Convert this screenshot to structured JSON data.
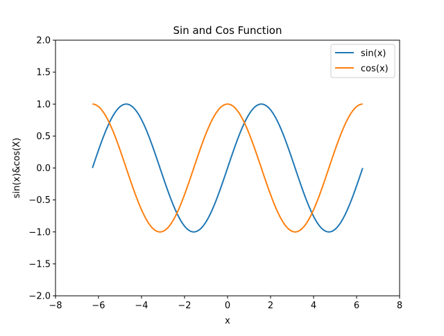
{
  "chart_data": {
    "type": "line",
    "title": "Sin and Cos Function",
    "xlabel": "x",
    "ylabel": "sin(x)&cos(X)",
    "xlim": [
      -8,
      8
    ],
    "ylim": [
      -2,
      2
    ],
    "xticks": [
      -8,
      -6,
      -4,
      -2,
      0,
      2,
      4,
      6,
      8
    ],
    "yticks": [
      -2.0,
      -1.5,
      -1.0,
      -0.5,
      0.0,
      0.5,
      1.0,
      1.5,
      2.0
    ],
    "xtick_labels": [
      "−8",
      "−6",
      "−4",
      "−2",
      "0",
      "2",
      "4",
      "6",
      "8"
    ],
    "ytick_labels": [
      "−2.0",
      "−1.5",
      "−1.0",
      "−0.5",
      "0.0",
      "0.5",
      "1.0",
      "1.5",
      "2.0"
    ],
    "grid": false,
    "legend_position": "top-right",
    "x_range": [
      -6.283,
      6.283
    ],
    "series": [
      {
        "name": "sin(x)",
        "color": "#1f77b4",
        "points": [
          [
            -6.283,
            0.0
          ],
          [
            -6.0,
            0.279
          ],
          [
            -5.5,
            0.706
          ],
          [
            -5.0,
            0.959
          ],
          [
            -4.712,
            1.0
          ],
          [
            -4.5,
            0.978
          ],
          [
            -4.0,
            0.757
          ],
          [
            -3.5,
            0.351
          ],
          [
            -3.142,
            0.0
          ],
          [
            -3.0,
            -0.141
          ],
          [
            -2.5,
            -0.598
          ],
          [
            -2.0,
            -0.909
          ],
          [
            -1.571,
            -1.0
          ],
          [
            -1.5,
            -0.997
          ],
          [
            -1.0,
            -0.841
          ],
          [
            -0.5,
            -0.479
          ],
          [
            0.0,
            0.0
          ],
          [
            0.5,
            0.479
          ],
          [
            1.0,
            0.841
          ],
          [
            1.5,
            0.997
          ],
          [
            1.571,
            1.0
          ],
          [
            2.0,
            0.909
          ],
          [
            2.5,
            0.598
          ],
          [
            3.0,
            0.141
          ],
          [
            3.142,
            0.0
          ],
          [
            3.5,
            -0.351
          ],
          [
            4.0,
            -0.757
          ],
          [
            4.5,
            -0.978
          ],
          [
            4.712,
            -1.0
          ],
          [
            5.0,
            -0.959
          ],
          [
            5.5,
            -0.706
          ],
          [
            6.0,
            -0.279
          ],
          [
            6.283,
            0.0
          ]
        ]
      },
      {
        "name": "cos(x)",
        "color": "#ff7f0e",
        "points": [
          [
            -6.283,
            1.0
          ],
          [
            -6.0,
            0.96
          ],
          [
            -5.5,
            0.709
          ],
          [
            -5.0,
            0.284
          ],
          [
            -4.712,
            0.0
          ],
          [
            -4.5,
            -0.211
          ],
          [
            -4.0,
            -0.654
          ],
          [
            -3.5,
            -0.936
          ],
          [
            -3.142,
            -1.0
          ],
          [
            -3.0,
            -0.99
          ],
          [
            -2.5,
            -0.801
          ],
          [
            -2.0,
            -0.416
          ],
          [
            -1.571,
            0.0
          ],
          [
            -1.5,
            0.071
          ],
          [
            -1.0,
            0.54
          ],
          [
            -0.5,
            0.878
          ],
          [
            0.0,
            1.0
          ],
          [
            0.5,
            0.878
          ],
          [
            1.0,
            0.54
          ],
          [
            1.5,
            0.071
          ],
          [
            1.571,
            0.0
          ],
          [
            2.0,
            -0.416
          ],
          [
            2.5,
            -0.801
          ],
          [
            3.0,
            -0.99
          ],
          [
            3.142,
            -1.0
          ],
          [
            3.5,
            -0.936
          ],
          [
            4.0,
            -0.654
          ],
          [
            4.5,
            -0.211
          ],
          [
            4.712,
            0.0
          ],
          [
            5.0,
            0.284
          ],
          [
            5.5,
            0.709
          ],
          [
            6.0,
            0.96
          ],
          [
            6.283,
            1.0
          ]
        ]
      }
    ]
  }
}
